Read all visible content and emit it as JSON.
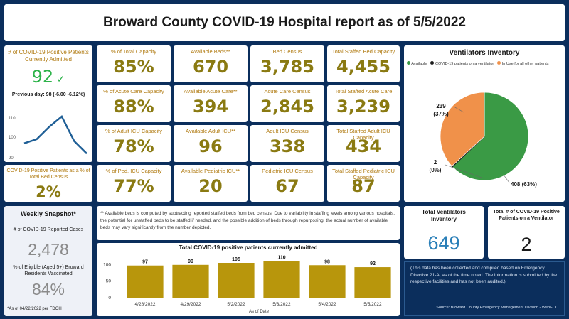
{
  "title": "Broward County COVID-19 Hospital report as of 5/5/2022",
  "admitted": {
    "label": "# of COVID-19 Positive Patients Currently Admitted",
    "value": "92",
    "previous": "Previous day: 98 (-6.00 -6.12%)",
    "trend_values": [
      97,
      99,
      105,
      110,
      98,
      92
    ],
    "axis_ticks": [
      "110",
      "100",
      "90"
    ]
  },
  "percent_census": {
    "label": "COVID-19 Positive Patients as a % of Total Bed Census",
    "value": "2%"
  },
  "metrics": [
    {
      "label": "% of Total Capacity",
      "value": "85%"
    },
    {
      "label": "Available Beds**",
      "value": "670"
    },
    {
      "label": "Bed Census",
      "value": "3,785"
    },
    {
      "label": "Total Staffed Bed Capacity",
      "value": "4,455"
    },
    {
      "label": "% of Acute Care Capacity",
      "value": "88%"
    },
    {
      "label": "Available Acute Care**",
      "value": "394"
    },
    {
      "label": "Acute Care Census",
      "value": "2,845"
    },
    {
      "label": "Total Staffed Acute Care",
      "value": "3,239"
    },
    {
      "label": "% of Adult ICU Capacity",
      "value": "78%"
    },
    {
      "label": "Available Adult ICU**",
      "value": "96"
    },
    {
      "label": "Adult ICU Census",
      "value": "338"
    },
    {
      "label": "Total Staffed Adult ICU Capacity",
      "value": "434"
    },
    {
      "label": "% of Ped. ICU Capacity",
      "value": "77%"
    },
    {
      "label": "Available Pediatric ICU**",
      "value": "20"
    },
    {
      "label": "Pediatric ICU Census",
      "value": "67"
    },
    {
      "label": "Total Staffed Pediatric ICU Capacity",
      "value": "87"
    }
  ],
  "ventilators": {
    "title": "Ventilators Inventory",
    "legend": [
      {
        "label": "Available",
        "color": "#3a9a45"
      },
      {
        "label": "COVID-19 patients on a ventilator",
        "color": "#1a1a1a"
      },
      {
        "label": "In Use for all other patients",
        "color": "#f0914a"
      }
    ],
    "slices": [
      {
        "name": "Available",
        "value": 408,
        "color": "#3a9a45",
        "label": "408 (63%)"
      },
      {
        "name": "COVID-19 patients on a ventilator",
        "value": 2,
        "color": "#1a1a1a",
        "label": "2 (0%)"
      },
      {
        "name": "In Use for all other patients",
        "value": 239,
        "color": "#f0914a",
        "label": "239 (37%)"
      }
    ]
  },
  "weekly": {
    "title": "Weekly Snapshot*",
    "cases_label": "# of COVID-19 Reported Cases",
    "cases_value": "2,478",
    "vacc_label": "% of Eligible (Aged 5+) Broward Residents Vaccinated",
    "vacc_value": "84%",
    "footnote": "*As of 04/22/2022 per FDOH"
  },
  "note": "** Available beds is computed by subtracting reported staffed beds from bed census. Due to variability in staffing levels among various hospitals, the potential for unstaffed beds to be staffed if needed, and the possible addition of beds through repurposing, the actual number of available beds may vary significantly from the number depicted.",
  "chart_data": {
    "type": "bar",
    "title": "Total COVID-19 positive patients currently admitted",
    "categories": [
      "4/28/2022",
      "4/29/2022",
      "5/2/2022",
      "5/3/2022",
      "5/4/2022",
      "5/5/2022"
    ],
    "values": [
      97,
      99,
      105,
      110,
      98,
      92
    ],
    "xlabel": "As of Date",
    "ylabel": "",
    "yticks": [
      "100",
      "50",
      "0"
    ],
    "ylim": [
      0,
      120
    ],
    "color": "#b8960c"
  },
  "total_vent": {
    "label": "Total Ventilators Inventory",
    "value": "649"
  },
  "covid_vent": {
    "label": "Total # of COVID-19 Positive Patients on a Ventilator",
    "value": "2"
  },
  "disclaimer": "(This data has been collected and compiled based on Emergency Directive 21-A, as of the time noted. The information is submitted by the respective facilities and has not been audited.)",
  "source": "Source: Broward County Emergency Management Division - WebEOC"
}
